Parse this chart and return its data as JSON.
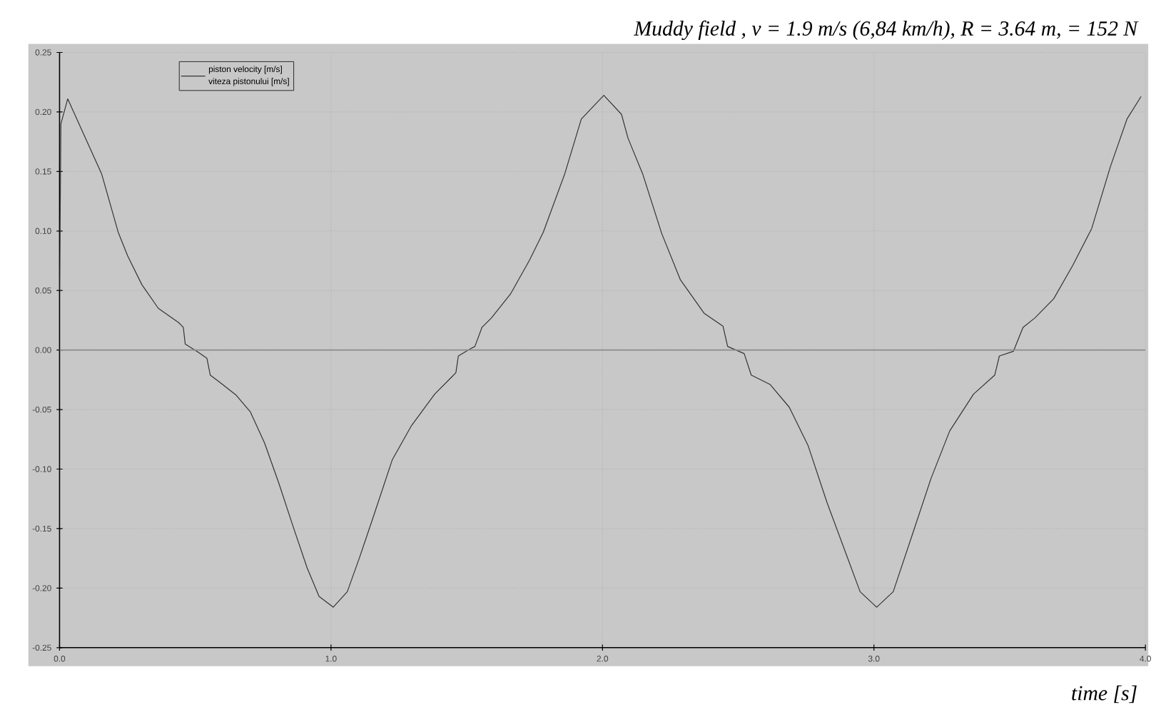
{
  "chart_data": {
    "type": "line",
    "title": "Muddy field , v = 1.9 m/s (6,84 km/h), R = 3.64 m,     = 152 N",
    "xlabel": "time [s]",
    "annotations": [
      "viteza pistonului [m/s]"
    ],
    "x": [
      0,
      0.005,
      0.03,
      0.155,
      0.216,
      0.251,
      0.303,
      0.364,
      0.439,
      0.456,
      0.463,
      0.512,
      0.543,
      0.555,
      0.59,
      0.651,
      0.703,
      0.755,
      0.808,
      0.86,
      0.912,
      0.956,
      1.008,
      1.06,
      1.104,
      1.156,
      1.226,
      1.295,
      1.382,
      1.443,
      1.46,
      1.469,
      1.513,
      1.53,
      1.556,
      1.591,
      1.661,
      1.73,
      1.782,
      1.861,
      1.922,
      2.005,
      2.07,
      2.094,
      2.148,
      2.218,
      2.287,
      2.374,
      2.444,
      2.461,
      2.522,
      2.548,
      2.618,
      2.688,
      2.757,
      2.827,
      2.897,
      2.949,
      3.01,
      3.071,
      3.14,
      3.21,
      3.279,
      3.367,
      3.445,
      3.462,
      3.514,
      3.549,
      3.593,
      3.662,
      3.732,
      3.802,
      3.871,
      3.932,
      3.984
    ],
    "series": [
      {
        "name": "piston velocity [m/s]",
        "color": "#333333",
        "values": [
          0.05,
          0.19,
          0.211,
          0.148,
          0.099,
          0.079,
          0.055,
          0.035,
          0.023,
          0.019,
          0.005,
          -0.002,
          -0.007,
          -0.021,
          -0.027,
          -0.038,
          -0.052,
          -0.078,
          -0.112,
          -0.148,
          -0.183,
          -0.207,
          -0.216,
          -0.203,
          -0.175,
          -0.14,
          -0.092,
          -0.064,
          -0.037,
          -0.023,
          -0.019,
          -0.005,
          0.001,
          0.003,
          0.019,
          0.027,
          0.047,
          0.075,
          0.099,
          0.148,
          0.194,
          0.214,
          0.198,
          0.178,
          0.148,
          0.098,
          0.059,
          0.031,
          0.02,
          0.003,
          -0.003,
          -0.021,
          -0.029,
          -0.048,
          -0.08,
          -0.128,
          -0.171,
          -0.203,
          -0.216,
          -0.203,
          -0.156,
          -0.108,
          -0.068,
          -0.037,
          -0.021,
          -0.005,
          -0.001,
          0.019,
          0.027,
          0.043,
          0.071,
          0.102,
          0.154,
          0.194,
          0.213
        ]
      }
    ],
    "xlim": [
      0,
      4
    ],
    "xticks": [
      {
        "value": 0,
        "label": "0.0"
      },
      {
        "value": 1,
        "label": "1.0"
      },
      {
        "value": 2,
        "label": "2.0"
      },
      {
        "value": 3,
        "label": "3.0"
      },
      {
        "value": 4,
        "label": "4.0"
      }
    ],
    "ylim": [
      -0.25,
      0.25
    ],
    "yticks": [
      {
        "value": -0.25,
        "label": "-0.25"
      },
      {
        "value": -0.2,
        "label": "-0.20"
      },
      {
        "value": -0.15,
        "label": "-0.15"
      },
      {
        "value": -0.1,
        "label": "-0.10"
      },
      {
        "value": -0.05,
        "label": "-0.05"
      },
      {
        "value": 0,
        "label": "0.00"
      },
      {
        "value": 0.05,
        "label": "0.05"
      },
      {
        "value": 0.1,
        "label": "0.10"
      },
      {
        "value": 0.15,
        "label": "0.15"
      },
      {
        "value": 0.2,
        "label": "0.20"
      },
      {
        "value": 0.25,
        "label": "0.25"
      }
    ],
    "ref_lines": [
      {
        "axis": "y",
        "value": 0,
        "color": "#8c8c8c"
      }
    ],
    "grid": true,
    "legend": "top left",
    "marker": "none",
    "line_style": "solid"
  }
}
